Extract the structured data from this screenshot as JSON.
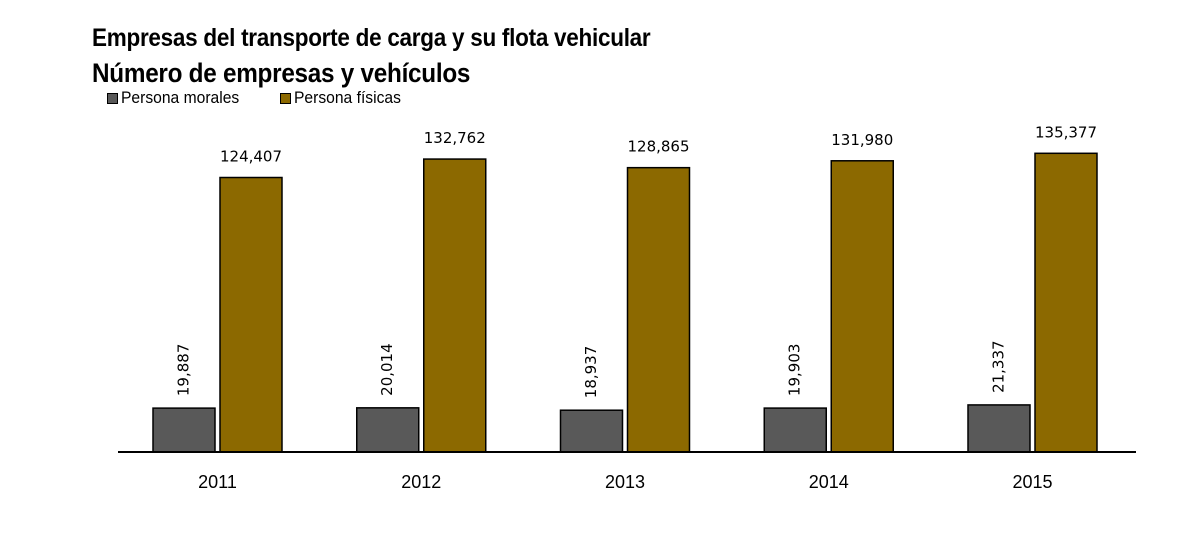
{
  "chart_data": {
    "type": "bar",
    "title": "Empresas del transporte de carga y su flota vehicular",
    "subtitle": "Número de empresas y vehículos",
    "xlabel": "",
    "ylabel": "",
    "categories": [
      "2011",
      "2012",
      "2013",
      "2014",
      "2015"
    ],
    "series": [
      {
        "name": "Persona morales",
        "values": [
          19887,
          20014,
          18937,
          19903,
          21337
        ],
        "labels": [
          "19,887",
          "20,014",
          "18,937",
          "19,903",
          "21,337"
        ],
        "color": "#595959"
      },
      {
        "name": "Persona físicas",
        "values": [
          124407,
          132762,
          128865,
          131980,
          135377
        ],
        "labels": [
          "124,407",
          "132,762",
          "128,865",
          "131,980",
          "135,377"
        ],
        "color": "#8C6900"
      }
    ],
    "ylim": [
      0,
      155000
    ],
    "grid": false,
    "legend_position": "top-left"
  }
}
